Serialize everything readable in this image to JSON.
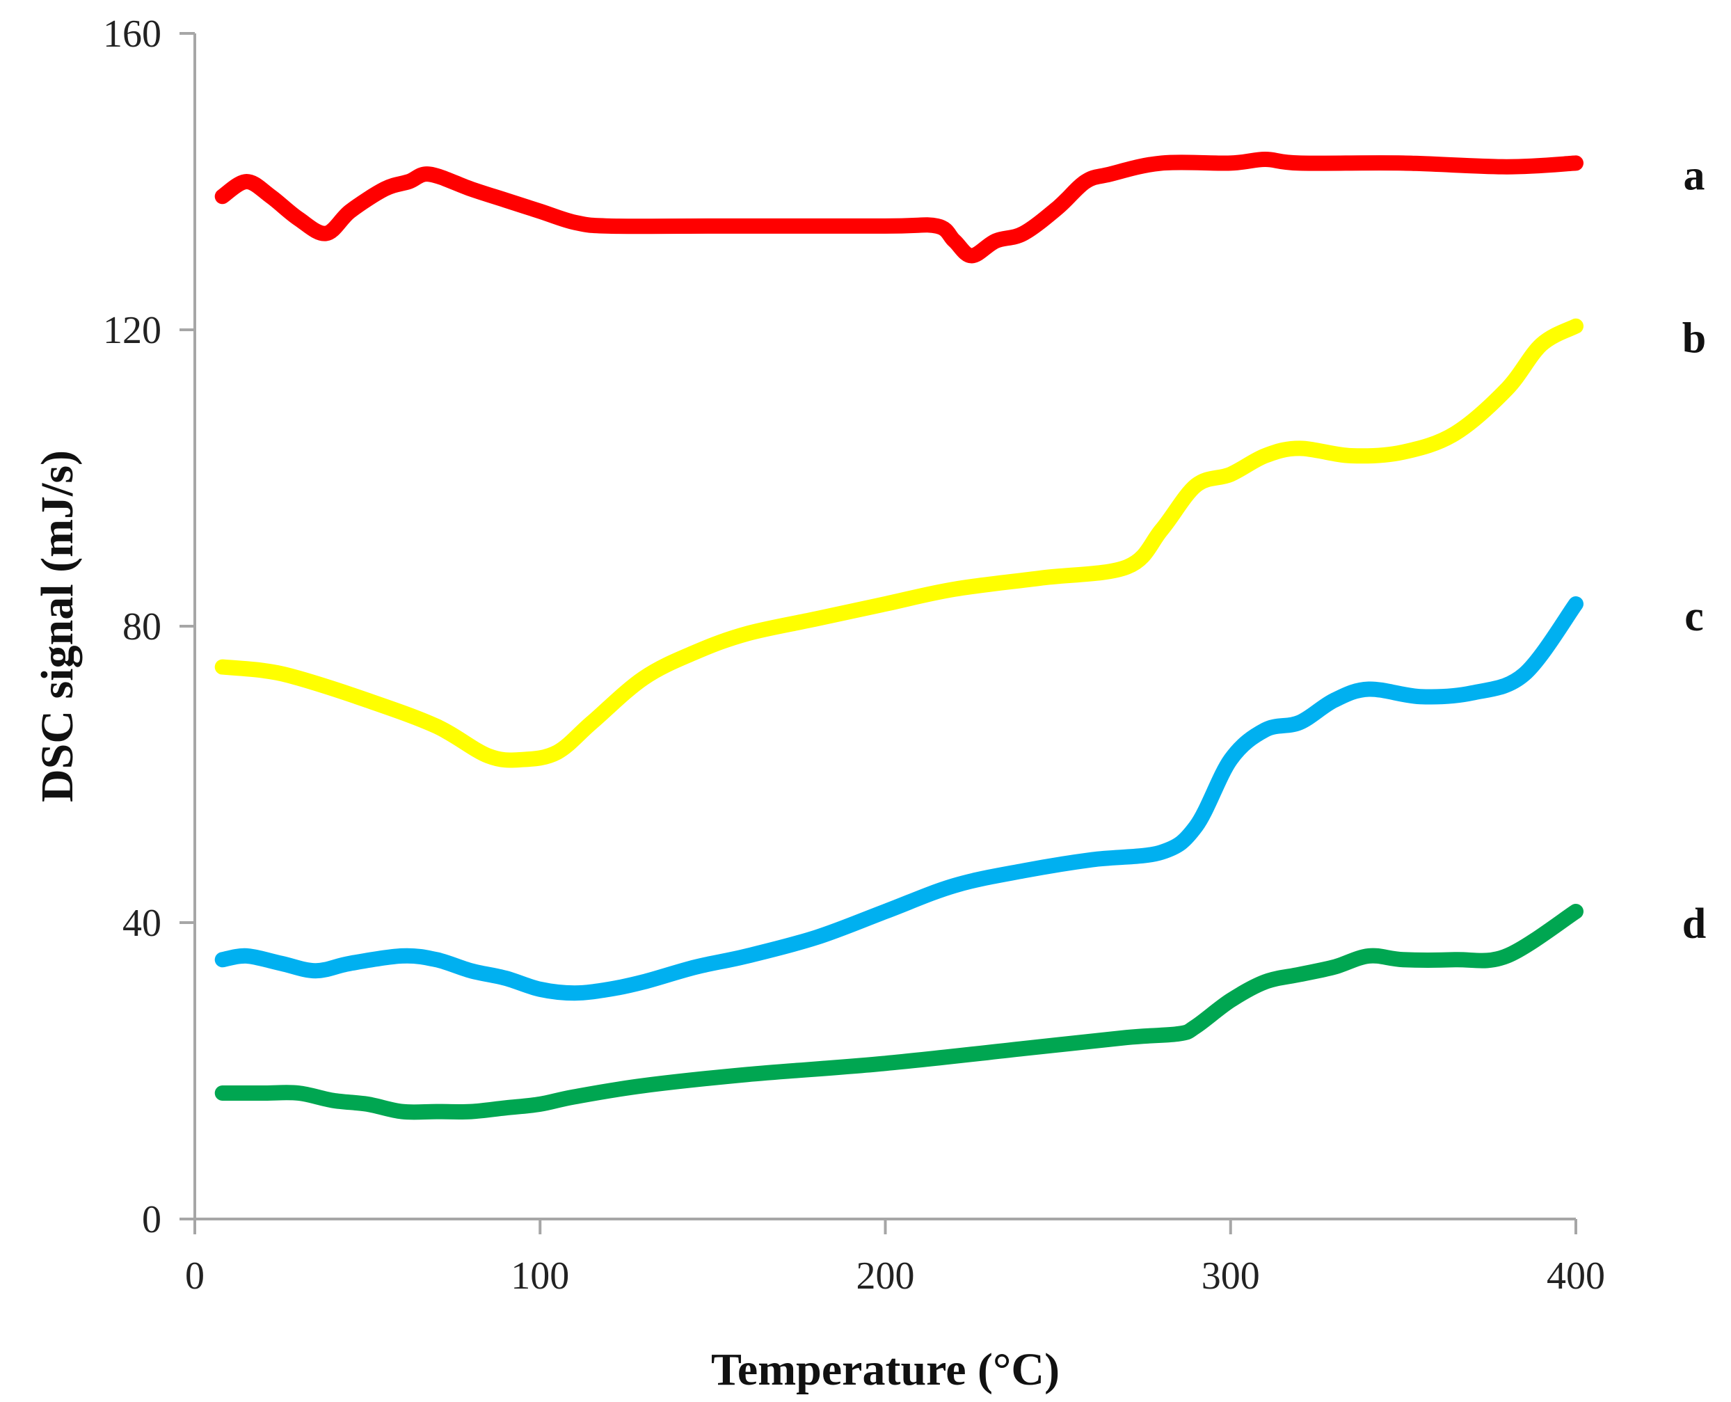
{
  "chart_data": {
    "type": "line",
    "title": "",
    "xlabel": "Temperature (°C)",
    "ylabel": "DSC signal (mJ/s)",
    "xlim": [
      0,
      400
    ],
    "ylim": [
      0,
      160
    ],
    "xticks": [
      0,
      100,
      200,
      300,
      400
    ],
    "yticks": [
      0,
      40,
      80,
      120,
      160
    ],
    "grid": false,
    "legend": "none",
    "series": [
      {
        "name": "a",
        "color": "#ff0000",
        "x": [
          8,
          15,
          22,
          30,
          38,
          45,
          55,
          62,
          68,
          80,
          90,
          100,
          110,
          120,
          150,
          200,
          215,
          220,
          225,
          232,
          240,
          250,
          258,
          265,
          280,
          300,
          310,
          320,
          350,
          380,
          400
        ],
        "y": [
          138,
          140,
          138,
          135,
          133,
          136,
          139,
          140,
          141,
          139,
          137.5,
          136,
          134.5,
          134,
          134,
          134,
          134,
          132,
          130,
          132,
          133,
          136.5,
          140,
          141,
          142.5,
          142.5,
          143,
          142.5,
          142.5,
          142,
          142.5
        ]
      },
      {
        "name": "b",
        "color": "#ffff00",
        "x": [
          8,
          20,
          30,
          50,
          70,
          85,
          95,
          105,
          115,
          130,
          145,
          160,
          180,
          200,
          220,
          245,
          270,
          280,
          290,
          300,
          310,
          320,
          335,
          350,
          365,
          380,
          390,
          400
        ],
        "y": [
          74.5,
          74,
          73,
          70,
          66.5,
          62.5,
          62,
          63,
          67,
          73,
          76.5,
          79,
          81,
          83,
          85,
          86.5,
          88,
          93,
          99,
          100.5,
          103,
          104,
          103,
          103.5,
          106,
          112,
          118,
          120.5
        ]
      },
      {
        "name": "c",
        "color": "#00b0f0",
        "x": [
          8,
          15,
          25,
          35,
          45,
          60,
          70,
          80,
          90,
          100,
          110,
          120,
          130,
          145,
          160,
          180,
          200,
          220,
          240,
          260,
          280,
          290,
          300,
          310,
          320,
          330,
          340,
          355,
          370,
          385,
          400
        ],
        "y": [
          35,
          35.5,
          34.5,
          33.5,
          34.5,
          35.5,
          35,
          33.5,
          32.5,
          31,
          30.5,
          31,
          32,
          34,
          35.5,
          38,
          41.5,
          45,
          47,
          48.5,
          49.5,
          53,
          62,
          66,
          67,
          70,
          71.5,
          70.5,
          71,
          73.5,
          83
        ]
      },
      {
        "name": "d",
        "color": "#00a651",
        "x": [
          8,
          20,
          30,
          40,
          50,
          60,
          70,
          80,
          90,
          100,
          110,
          130,
          160,
          200,
          240,
          270,
          285,
          290,
          300,
          310,
          320,
          330,
          340,
          350,
          365,
          380,
          400
        ],
        "y": [
          17,
          17,
          17,
          16,
          15.5,
          14.5,
          14.5,
          14.5,
          15,
          15.5,
          16.5,
          18,
          19.5,
          21,
          23,
          24.5,
          25,
          26,
          29.5,
          32,
          33,
          34,
          35.5,
          35,
          35,
          35.5,
          41.5
        ]
      }
    ]
  }
}
